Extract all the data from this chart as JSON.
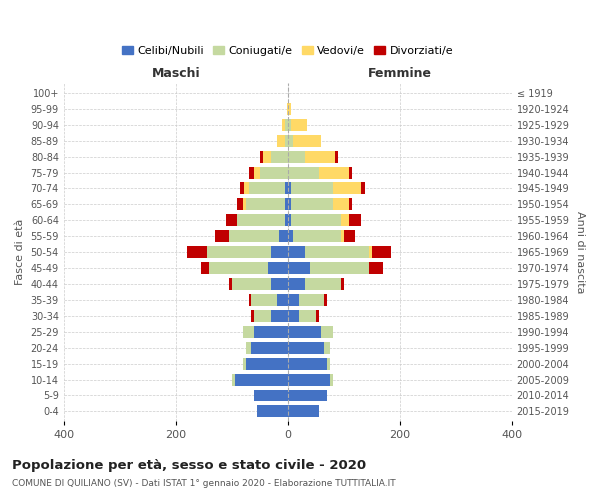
{
  "age_groups": [
    "0-4",
    "5-9",
    "10-14",
    "15-19",
    "20-24",
    "25-29",
    "30-34",
    "35-39",
    "40-44",
    "45-49",
    "50-54",
    "55-59",
    "60-64",
    "65-69",
    "70-74",
    "75-79",
    "80-84",
    "85-89",
    "90-94",
    "95-99",
    "100+"
  ],
  "birth_years": [
    "2015-2019",
    "2010-2014",
    "2005-2009",
    "2000-2004",
    "1995-1999",
    "1990-1994",
    "1985-1989",
    "1980-1984",
    "1975-1979",
    "1970-1974",
    "1965-1969",
    "1960-1964",
    "1955-1959",
    "1950-1954",
    "1945-1949",
    "1940-1944",
    "1935-1939",
    "1930-1934",
    "1925-1929",
    "1920-1924",
    "≤ 1919"
  ],
  "male": {
    "celibi": [
      55,
      60,
      95,
      75,
      65,
      60,
      30,
      20,
      30,
      35,
      30,
      15,
      5,
      5,
      5,
      0,
      0,
      0,
      0,
      0,
      0
    ],
    "coniugati": [
      0,
      0,
      5,
      5,
      10,
      20,
      30,
      45,
      70,
      105,
      115,
      90,
      85,
      70,
      65,
      50,
      30,
      5,
      5,
      0,
      0
    ],
    "vedovi": [
      0,
      0,
      0,
      0,
      0,
      0,
      0,
      0,
      0,
      0,
      0,
      0,
      0,
      5,
      8,
      10,
      15,
      15,
      5,
      2,
      0
    ],
    "divorziati": [
      0,
      0,
      0,
      0,
      0,
      0,
      5,
      5,
      5,
      15,
      35,
      25,
      20,
      10,
      8,
      10,
      5,
      0,
      0,
      0,
      0
    ]
  },
  "female": {
    "nubili": [
      55,
      70,
      75,
      70,
      65,
      60,
      20,
      20,
      30,
      40,
      30,
      10,
      5,
      5,
      5,
      0,
      0,
      0,
      0,
      0,
      0
    ],
    "coniugate": [
      0,
      0,
      5,
      5,
      10,
      20,
      30,
      45,
      65,
      105,
      115,
      85,
      90,
      75,
      75,
      55,
      30,
      10,
      5,
      0,
      0
    ],
    "vedove": [
      0,
      0,
      0,
      0,
      0,
      0,
      0,
      0,
      0,
      0,
      5,
      5,
      15,
      30,
      50,
      55,
      55,
      50,
      30,
      5,
      0
    ],
    "divorziate": [
      0,
      0,
      0,
      0,
      0,
      0,
      5,
      5,
      5,
      25,
      35,
      20,
      20,
      5,
      8,
      5,
      5,
      0,
      0,
      0,
      0
    ]
  },
  "colors": {
    "celibi": "#4472c4",
    "coniugati": "#c5d9a0",
    "vedovi": "#ffd966",
    "divorziati": "#c00000"
  },
  "title": "Popolazione per età, sesso e stato civile - 2020",
  "subtitle": "COMUNE DI QUILIANO (SV) - Dati ISTAT 1° gennaio 2020 - Elaborazione TUTTITALIA.IT",
  "ylabel_left": "Fasce di età",
  "ylabel_right": "Anni di nascita",
  "xlabel_left": "Maschi",
  "xlabel_right": "Femmine",
  "xlim": [
    -400,
    400
  ],
  "xticks": [
    -400,
    -200,
    0,
    200,
    400
  ],
  "legend_labels": [
    "Celibi/Nubili",
    "Coniugati/e",
    "Vedovi/e",
    "Divorziati/e"
  ]
}
